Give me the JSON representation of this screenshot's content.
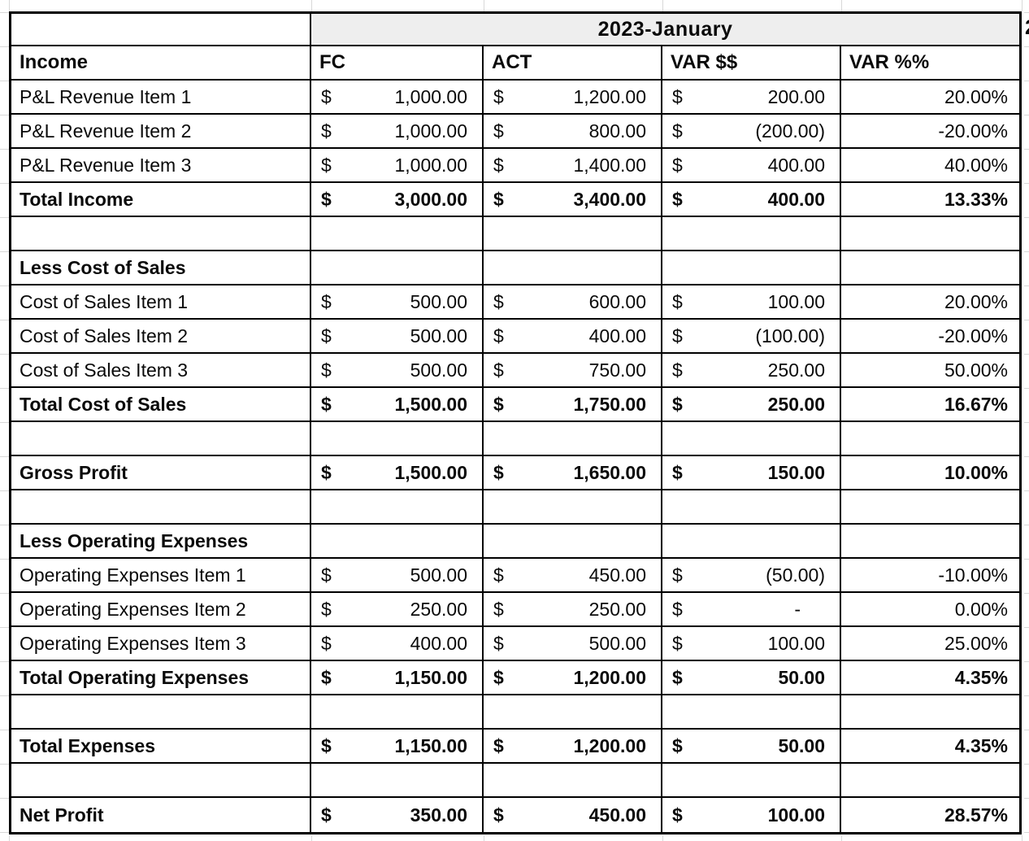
{
  "month_header": "2023-January",
  "next_month_partial": "2",
  "currency_symbol": "$",
  "columns": [
    "Income",
    "FC",
    "ACT",
    "VAR $$",
    "VAR %%"
  ],
  "rows": [
    {
      "type": "item",
      "label": "P&L Revenue Item 1",
      "fc": "1,000.00",
      "act": "1,200.00",
      "var": "200.00",
      "pct": "20.00%"
    },
    {
      "type": "item",
      "label": "P&L Revenue Item 2",
      "fc": "1,000.00",
      "act": "800.00",
      "var": "(200.00)",
      "pct": "-20.00%"
    },
    {
      "type": "item",
      "label": "P&L Revenue Item 3",
      "fc": "1,000.00",
      "act": "1,400.00",
      "var": "400.00",
      "pct": "40.00%"
    },
    {
      "type": "total",
      "label": "Total Income",
      "fc": "3,000.00",
      "act": "3,400.00",
      "var": "400.00",
      "pct": "13.33%"
    },
    {
      "type": "blank",
      "label": "",
      "fc": "",
      "act": "",
      "var": "",
      "pct": ""
    },
    {
      "type": "section",
      "label": "Less Cost of Sales",
      "fc": "",
      "act": "",
      "var": "",
      "pct": ""
    },
    {
      "type": "item",
      "label": "Cost of Sales Item 1",
      "fc": "500.00",
      "act": "600.00",
      "var": "100.00",
      "pct": "20.00%"
    },
    {
      "type": "item",
      "label": "Cost of Sales Item 2",
      "fc": "500.00",
      "act": "400.00",
      "var": "(100.00)",
      "pct": "-20.00%"
    },
    {
      "type": "item",
      "label": "Cost of Sales Item 3",
      "fc": "500.00",
      "act": "750.00",
      "var": "250.00",
      "pct": "50.00%"
    },
    {
      "type": "total",
      "label": "Total Cost of Sales",
      "fc": "1,500.00",
      "act": "1,750.00",
      "var": "250.00",
      "pct": "16.67%"
    },
    {
      "type": "blank",
      "label": "",
      "fc": "",
      "act": "",
      "var": "",
      "pct": ""
    },
    {
      "type": "total",
      "label": "Gross Profit",
      "fc": "1,500.00",
      "act": "1,650.00",
      "var": "150.00",
      "pct": "10.00%"
    },
    {
      "type": "blank",
      "label": "",
      "fc": "",
      "act": "",
      "var": "",
      "pct": ""
    },
    {
      "type": "section",
      "label": "Less Operating Expenses",
      "fc": "",
      "act": "",
      "var": "",
      "pct": ""
    },
    {
      "type": "item",
      "label": "Operating Expenses Item 1",
      "fc": "500.00",
      "act": "450.00",
      "var": "(50.00)",
      "pct": "-10.00%"
    },
    {
      "type": "item",
      "label": "Operating Expenses Item 2",
      "fc": "250.00",
      "act": "250.00",
      "var": "-",
      "pct": "0.00%"
    },
    {
      "type": "item",
      "label": "Operating Expenses Item 3",
      "fc": "400.00",
      "act": "500.00",
      "var": "100.00",
      "pct": "25.00%"
    },
    {
      "type": "total",
      "label": "Total Operating Expenses",
      "fc": "1,150.00",
      "act": "1,200.00",
      "var": "50.00",
      "pct": "4.35%"
    },
    {
      "type": "blank",
      "label": "",
      "fc": "",
      "act": "",
      "var": "",
      "pct": ""
    },
    {
      "type": "total",
      "label": "Total Expenses",
      "fc": "1,150.00",
      "act": "1,200.00",
      "var": "50.00",
      "pct": "4.35%"
    },
    {
      "type": "blank",
      "label": "",
      "fc": "",
      "act": "",
      "var": "",
      "pct": ""
    },
    {
      "type": "total",
      "label": "Net Profit",
      "fc": "350.00",
      "act": "450.00",
      "var": "100.00",
      "pct": "28.57%"
    }
  ]
}
